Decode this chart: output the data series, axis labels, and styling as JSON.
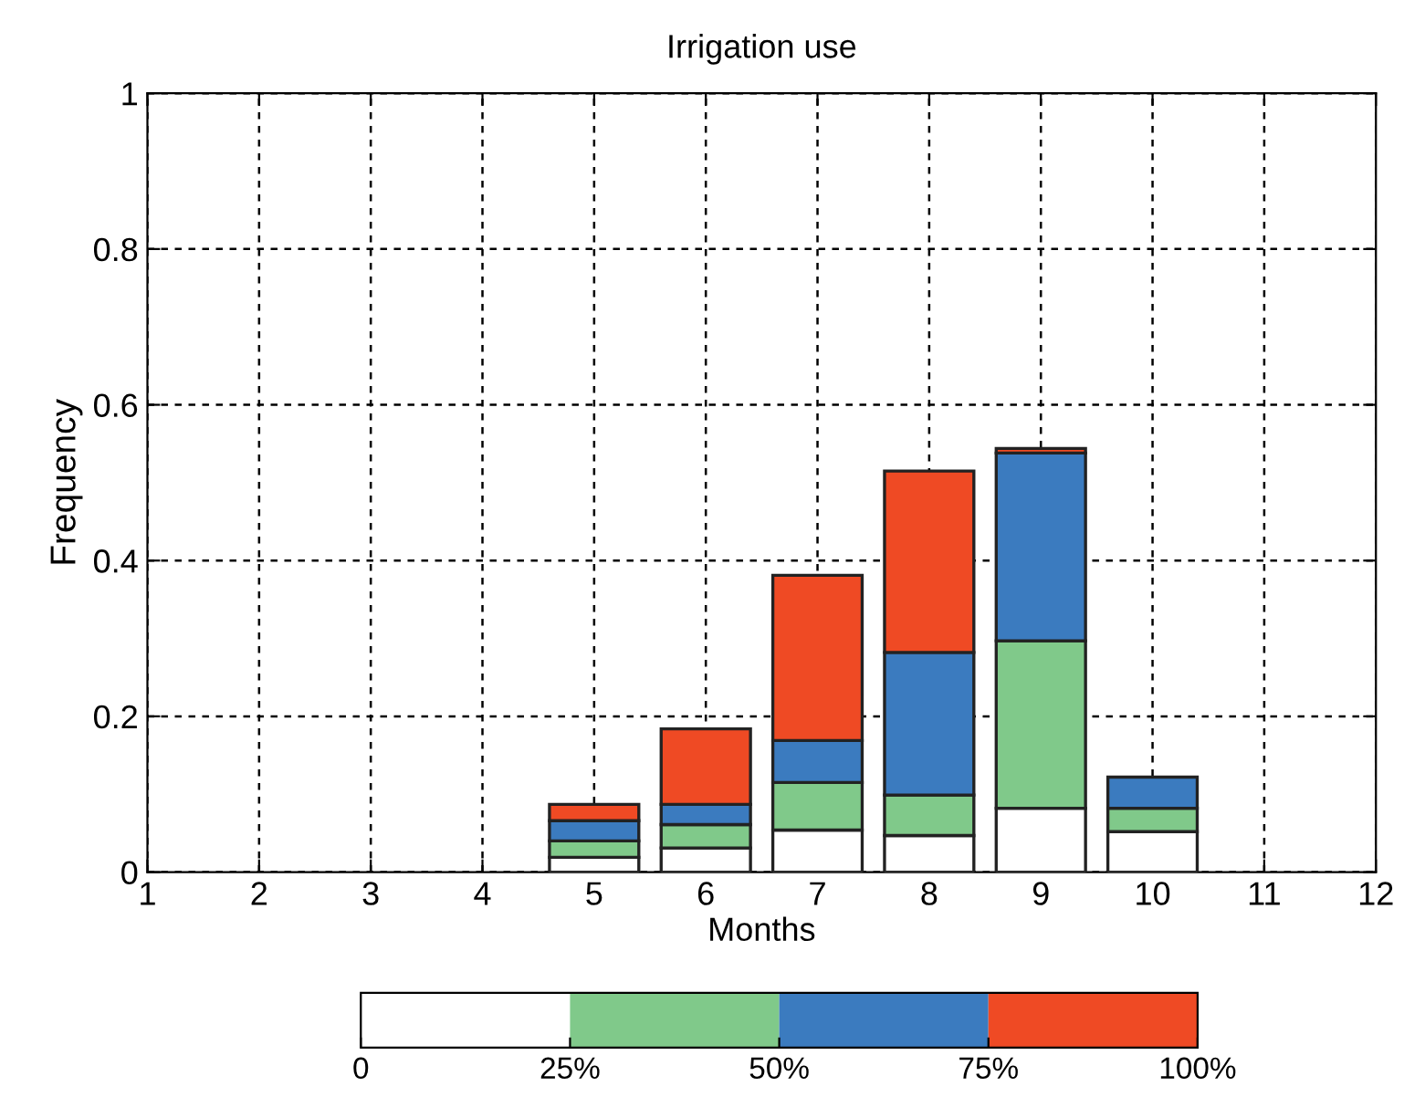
{
  "chart_data": {
    "type": "bar",
    "stacked": true,
    "title": "Irrigation use",
    "xlabel": "Months",
    "ylabel": "Frequency",
    "x": [
      5,
      6,
      7,
      8,
      9,
      10
    ],
    "series": [
      {
        "color": "#ffffff",
        "values": [
          0.019,
          0.031,
          0.054,
          0.047,
          0.082,
          0.052
        ]
      },
      {
        "color": "#80c98a",
        "values": [
          0.021,
          0.03,
          0.061,
          0.052,
          0.215,
          0.03
        ]
      },
      {
        "color": "#3b7bbf",
        "values": [
          0.026,
          0.026,
          0.054,
          0.183,
          0.241,
          0.04
        ]
      },
      {
        "color": "#ef4a24",
        "values": [
          0.021,
          0.097,
          0.212,
          0.233,
          0.006,
          null
        ]
      }
    ],
    "xlim": [
      1,
      12
    ],
    "xticks": [
      1,
      2,
      3,
      4,
      5,
      6,
      7,
      8,
      9,
      10,
      11,
      12
    ],
    "ylim": [
      0,
      1
    ],
    "yticks": [
      0,
      0.2,
      0.4,
      0.6,
      0.8,
      1
    ],
    "grid": true,
    "clim": [
      0,
      100
    ],
    "cticks": [
      0,
      {
        "value": 25,
        "label": "25%"
      },
      {
        "value": 50,
        "label": "50%"
      },
      {
        "value": 75,
        "label": "75%"
      },
      {
        "value": 100,
        "label": "100%"
      }
    ]
  }
}
